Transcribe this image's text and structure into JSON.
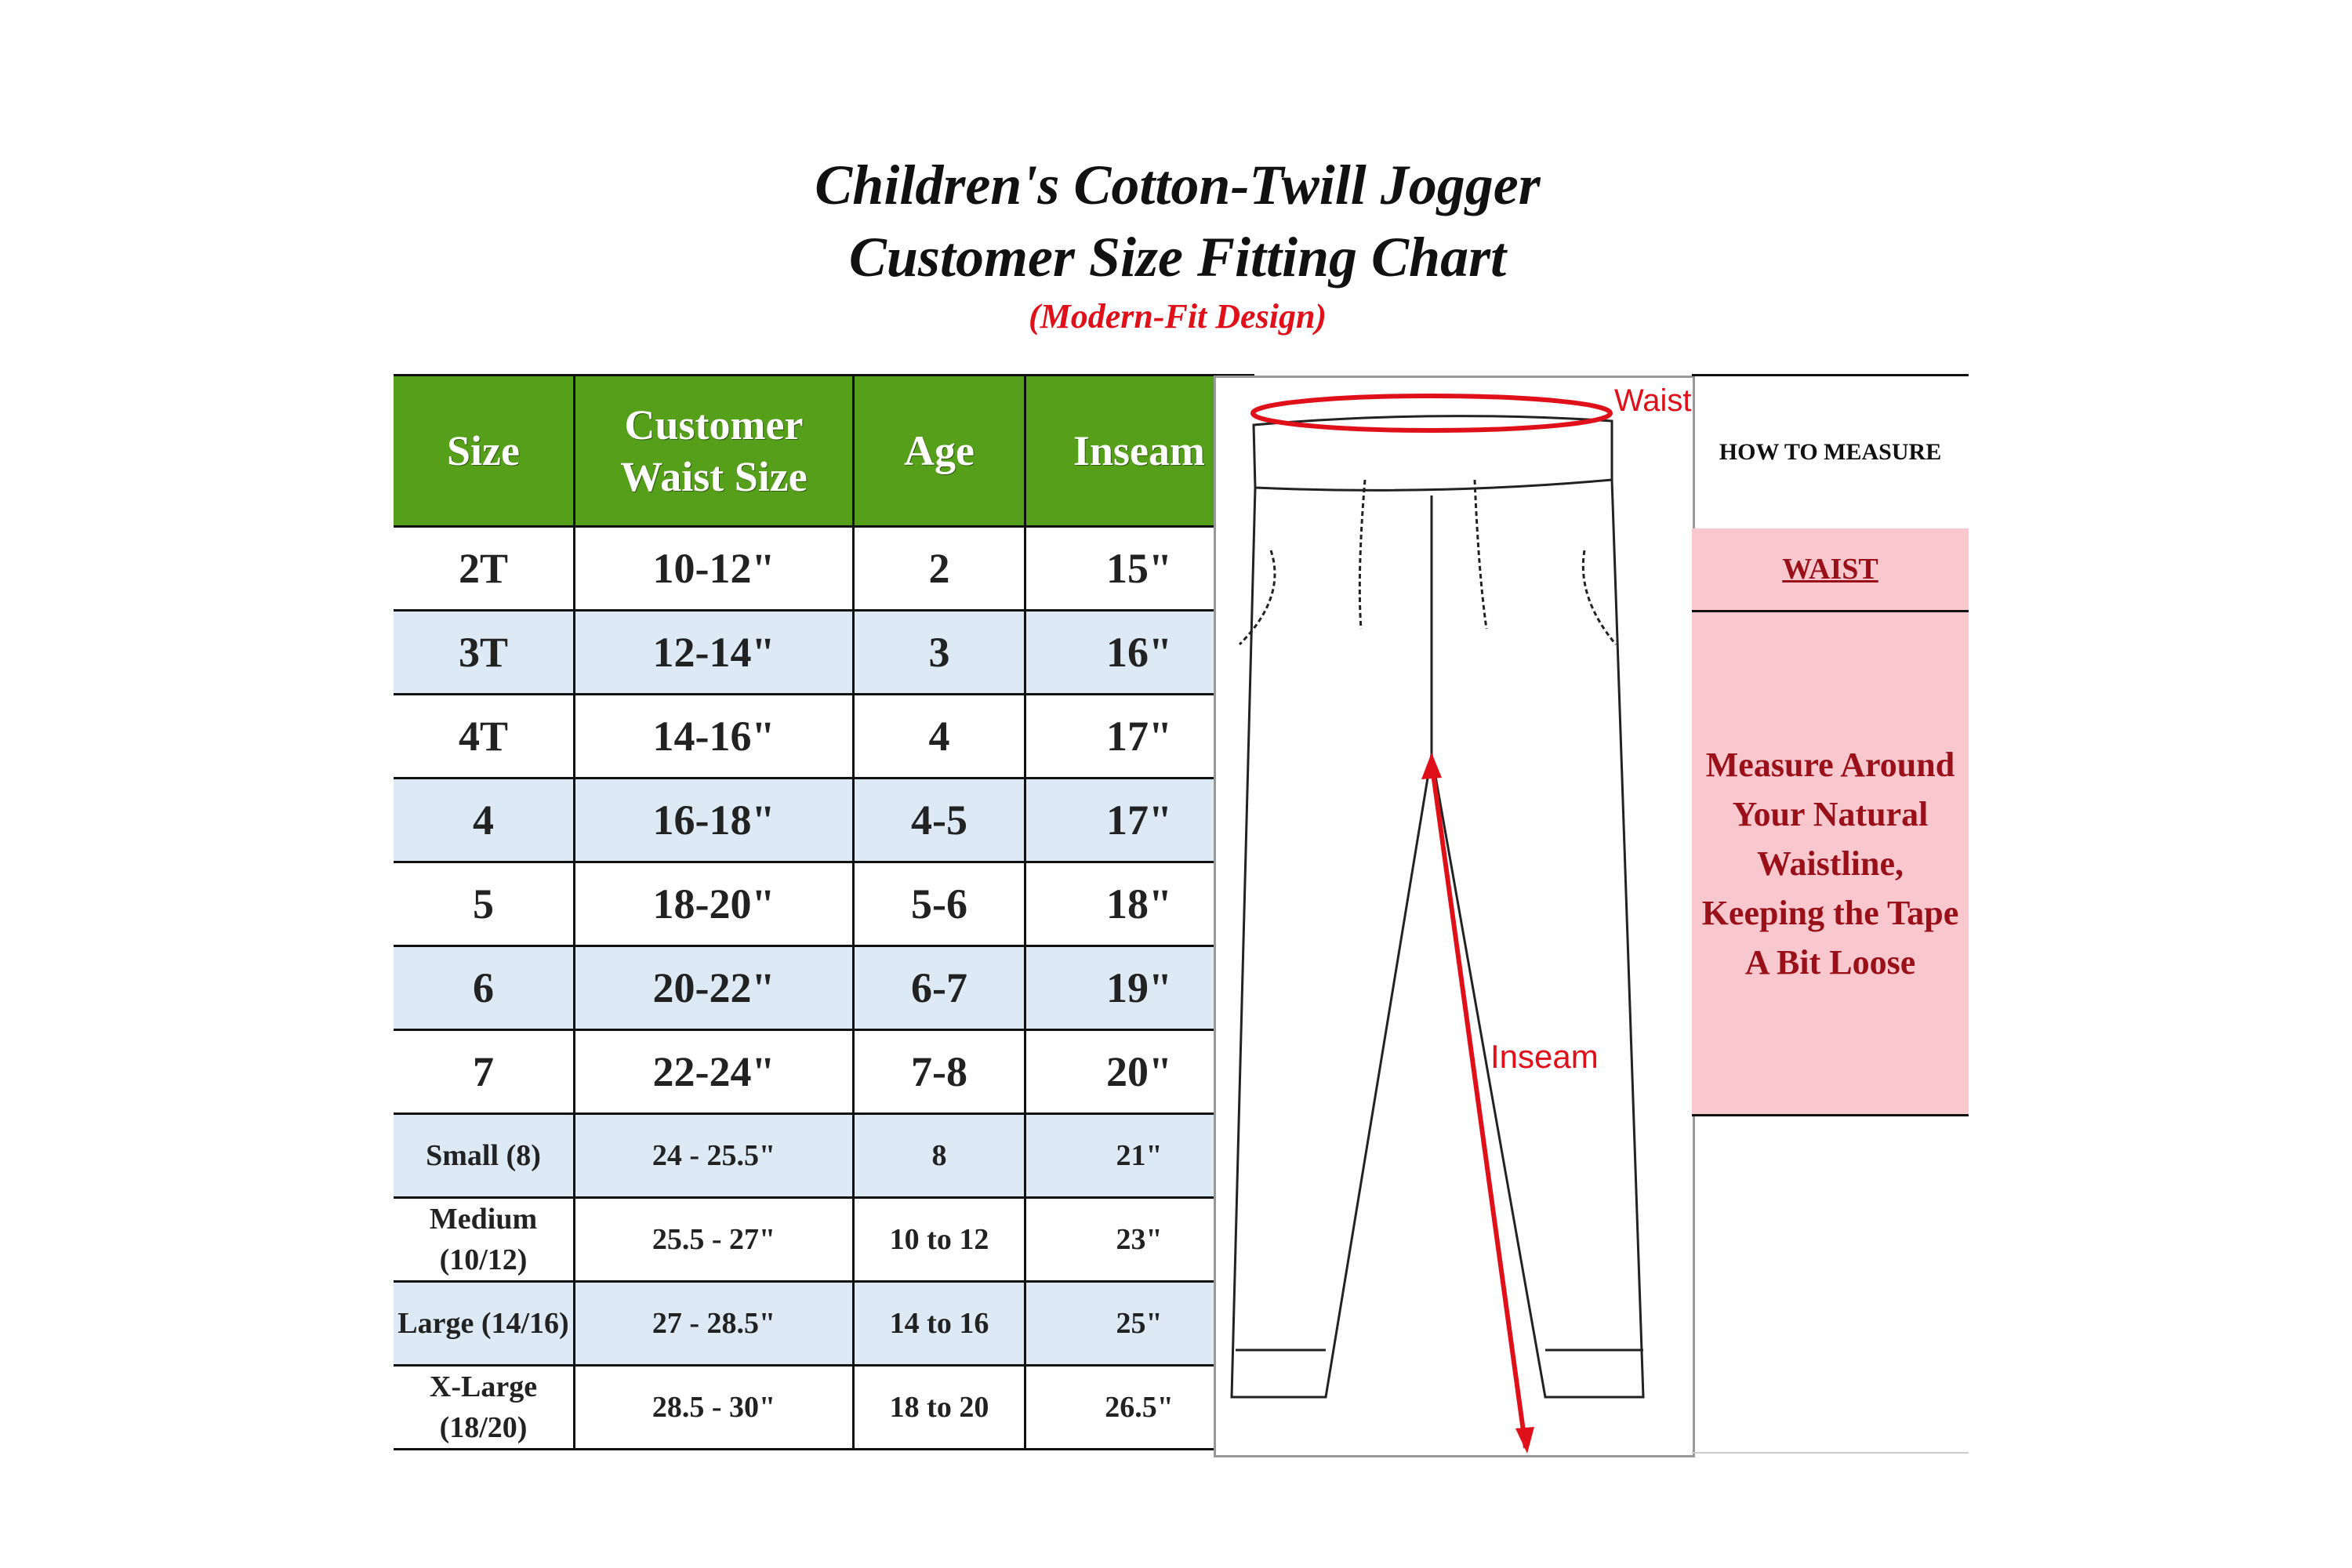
{
  "title": {
    "line1": "Children's Cotton-Twill Jogger",
    "line2": "Customer Size Fitting Chart",
    "subtitle": "(Modern-Fit Design)"
  },
  "colors": {
    "header_green": "#559f1a",
    "alt_row": "#dde9f5",
    "panel_pink": "#f9c8ce",
    "accent_red": "#e0101a",
    "text_dark_red": "#9a1018"
  },
  "table": {
    "headers": [
      "Size",
      "Customer Waist Size",
      "Age",
      "Inseam"
    ],
    "rows": [
      [
        "2T",
        "10-12\"",
        "2",
        "15\""
      ],
      [
        "3T",
        "12-14\"",
        "3",
        "16\""
      ],
      [
        "4T",
        "14-16\"",
        "4",
        "17\""
      ],
      [
        "4",
        "16-18\"",
        "4-5",
        "17\""
      ],
      [
        "5",
        "18-20\"",
        "5-6",
        "18\""
      ],
      [
        "6",
        "20-22\"",
        "6-7",
        "19\""
      ],
      [
        "7",
        "22-24\"",
        "7-8",
        "20\""
      ],
      [
        "Small (8)",
        "24 - 25.5\"",
        "8",
        "21\""
      ],
      [
        "Medium (10/12)",
        "25.5 - 27\"",
        "10 to 12",
        "23\""
      ],
      [
        "Large (14/16)",
        "27 - 28.5\"",
        "14 to 16",
        "25\""
      ],
      [
        "X-Large (18/20)",
        "28.5 - 30\"",
        "18 to 20",
        "26.5\""
      ]
    ]
  },
  "diagram": {
    "waist_label": "Waist",
    "inseam_label": "Inseam"
  },
  "measure": {
    "heading": "HOW TO MEASURE",
    "section": "WAIST",
    "instruction": "Measure Around Your Natural Waistline, Keeping the Tape A Bit Loose"
  }
}
